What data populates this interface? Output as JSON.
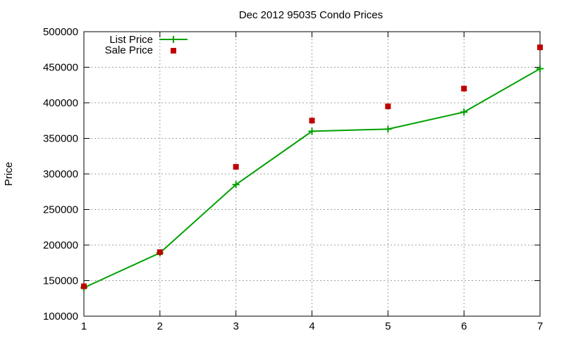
{
  "chart_data": {
    "type": "line",
    "title": "Dec 2012 95035 Condo Prices",
    "xlabel": "",
    "ylabel": "Price",
    "x": [
      1,
      2,
      3,
      4,
      5,
      6,
      7
    ],
    "xlim": [
      1,
      7
    ],
    "ylim": [
      100000,
      500000
    ],
    "xticks": [
      "1",
      "2",
      "3",
      "4",
      "5",
      "6",
      "7"
    ],
    "yticks": [
      "100000",
      "150000",
      "200000",
      "250000",
      "300000",
      "350000",
      "400000",
      "450000",
      "500000"
    ],
    "grid": true,
    "legend_position": "top-left",
    "series": [
      {
        "name": "List Price",
        "style": "line-with-plus-markers",
        "color": "#00a000",
        "values": [
          140000,
          189000,
          285000,
          360000,
          363000,
          387000,
          448000
        ]
      },
      {
        "name": "Sale Price",
        "style": "square-markers",
        "color": "#c00000",
        "values": [
          142000,
          190000,
          310000,
          375000,
          395000,
          420000,
          478000
        ]
      }
    ]
  }
}
